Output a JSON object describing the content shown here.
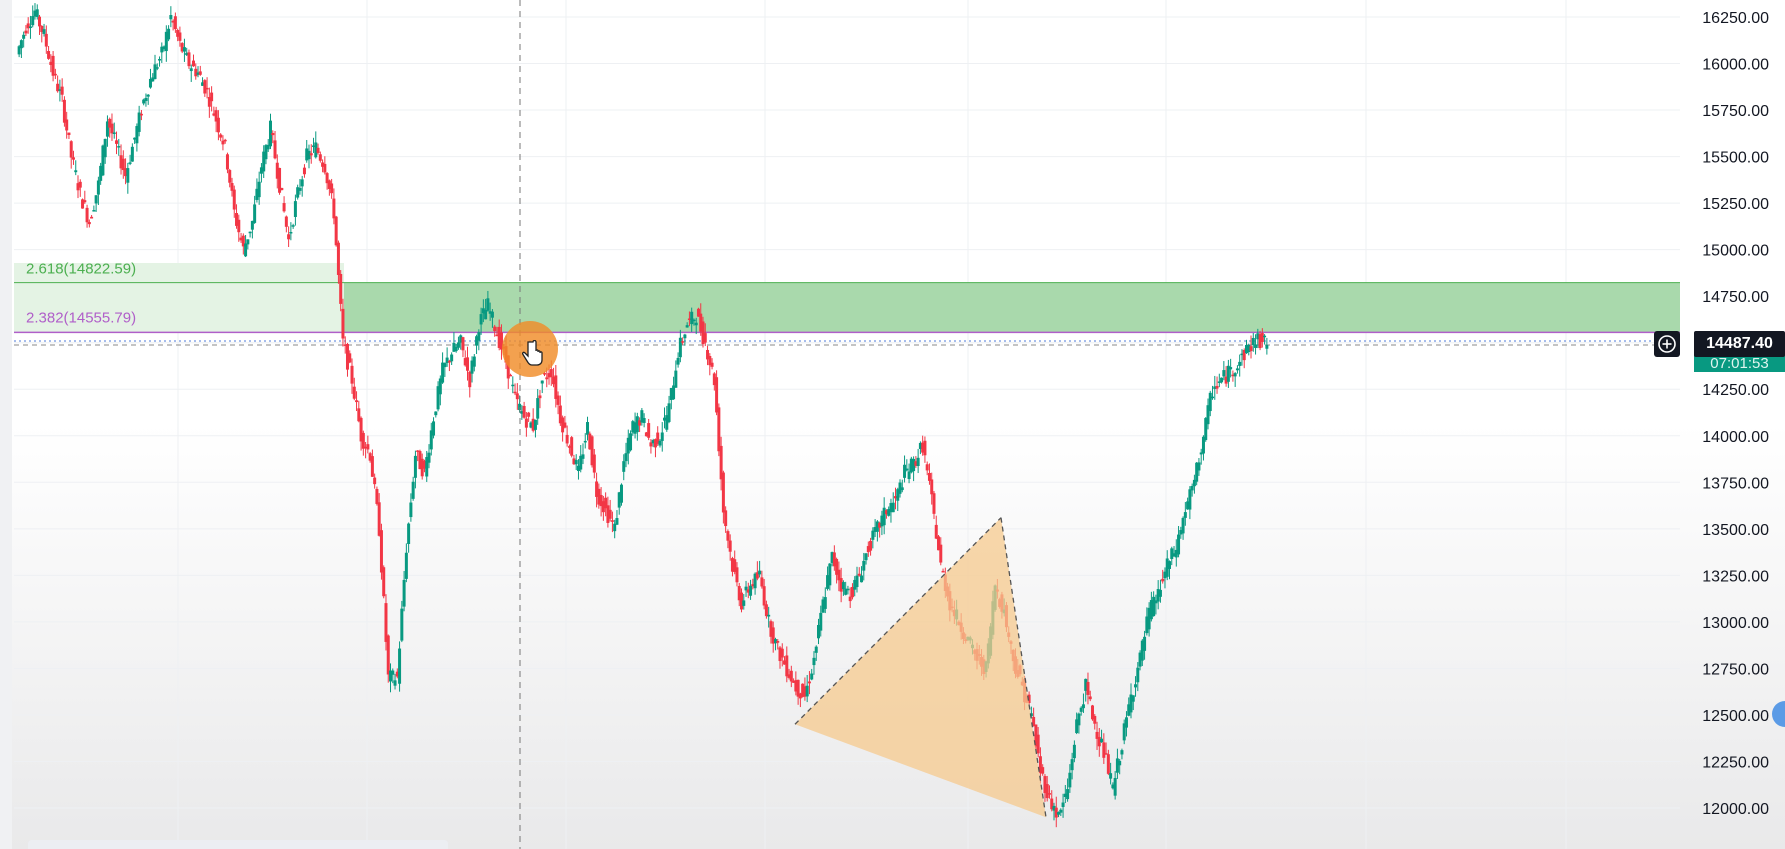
{
  "chart_data": {
    "type": "candlestick",
    "y_axis": {
      "ticks": [
        "16250.00",
        "16000.00",
        "15750.00",
        "15500.00",
        "15250.00",
        "15000.00",
        "14750.00",
        "14500.00",
        "14250.00",
        "14000.00",
        "13750.00",
        "13500.00",
        "13250.00",
        "13000.00",
        "12750.00",
        "12500.00",
        "12250.00",
        "12000.00"
      ],
      "tick_values": [
        16250,
        16000,
        15750,
        15500,
        15250,
        15000,
        14750,
        14500,
        14250,
        14000,
        13750,
        13500,
        13250,
        13000,
        12750,
        12500,
        12250,
        12000
      ],
      "range": [
        11875,
        16300
      ]
    },
    "grid": true,
    "colors": {
      "up": "#089981",
      "down": "#f23645",
      "fib_zone": "#a9d9ac",
      "fib_green": "#4caf50",
      "fib_purple": "#b05fc9",
      "triangle_fill": "#f5c98e",
      "triangle_edge": "#555555",
      "price_tag_bg": "#131722",
      "countdown_bg": "#089981",
      "highlight": "#f08c28"
    },
    "fib_levels": [
      {
        "label": "2.618(14822.59)",
        "value": 14822.59
      },
      {
        "label": "2.382(14555.79)",
        "value": 14555.79
      }
    ],
    "current_price": "14487.40",
    "countdown": "07:01:53",
    "triangle_prices": [
      12450,
      13560,
      11950
    ],
    "price_path": [
      16050,
      16200,
      16280,
      16150,
      15950,
      15800,
      15500,
      15300,
      15150,
      15350,
      15700,
      15550,
      15400,
      15600,
      15800,
      15950,
      16050,
      16250,
      16100,
      16000,
      15950,
      15850,
      15700,
      15550,
      15200,
      15000,
      15150,
      15450,
      15650,
      15350,
      15050,
      15300,
      15500,
      15550,
      15450,
      15200,
      14500,
      14300,
      14000,
      13900,
      13500,
      12700,
      12700,
      13400,
      13900,
      13800,
      14100,
      14350,
      14450,
      14500,
      14300,
      14600,
      14700,
      14550,
      14400,
      14200,
      14100,
      14050,
      14300,
      14350,
      14100,
      13950,
      13800,
      14050,
      13700,
      13600,
      13500,
      13850,
      14050,
      14100,
      13950,
      14000,
      14150,
      14450,
      14600,
      14650,
      14500,
      14300,
      13600,
      13300,
      13100,
      13200,
      13250,
      13000,
      12850,
      12750,
      12650,
      12600,
      12800,
      13100,
      13350,
      13200,
      13150,
      13250,
      13400,
      13500,
      13600,
      13650,
      13800,
      13850,
      13950,
      13650,
      13300,
      13100,
      13000,
      12900,
      12800,
      12750,
      13200,
      13050,
      12800,
      12650,
      12500,
      12200,
      12050,
      11950,
      12100,
      12450,
      12650,
      12450,
      12300,
      12100,
      12350,
      12600,
      12800,
      13050,
      13150,
      13300,
      13400,
      13600,
      13750,
      14000,
      14250,
      14300,
      14350,
      14400,
      14480,
      14520,
      14487
    ]
  },
  "crosshair": {
    "add_icon": "plus-circle-icon",
    "cursor_icon": "hand-cursor-icon"
  }
}
